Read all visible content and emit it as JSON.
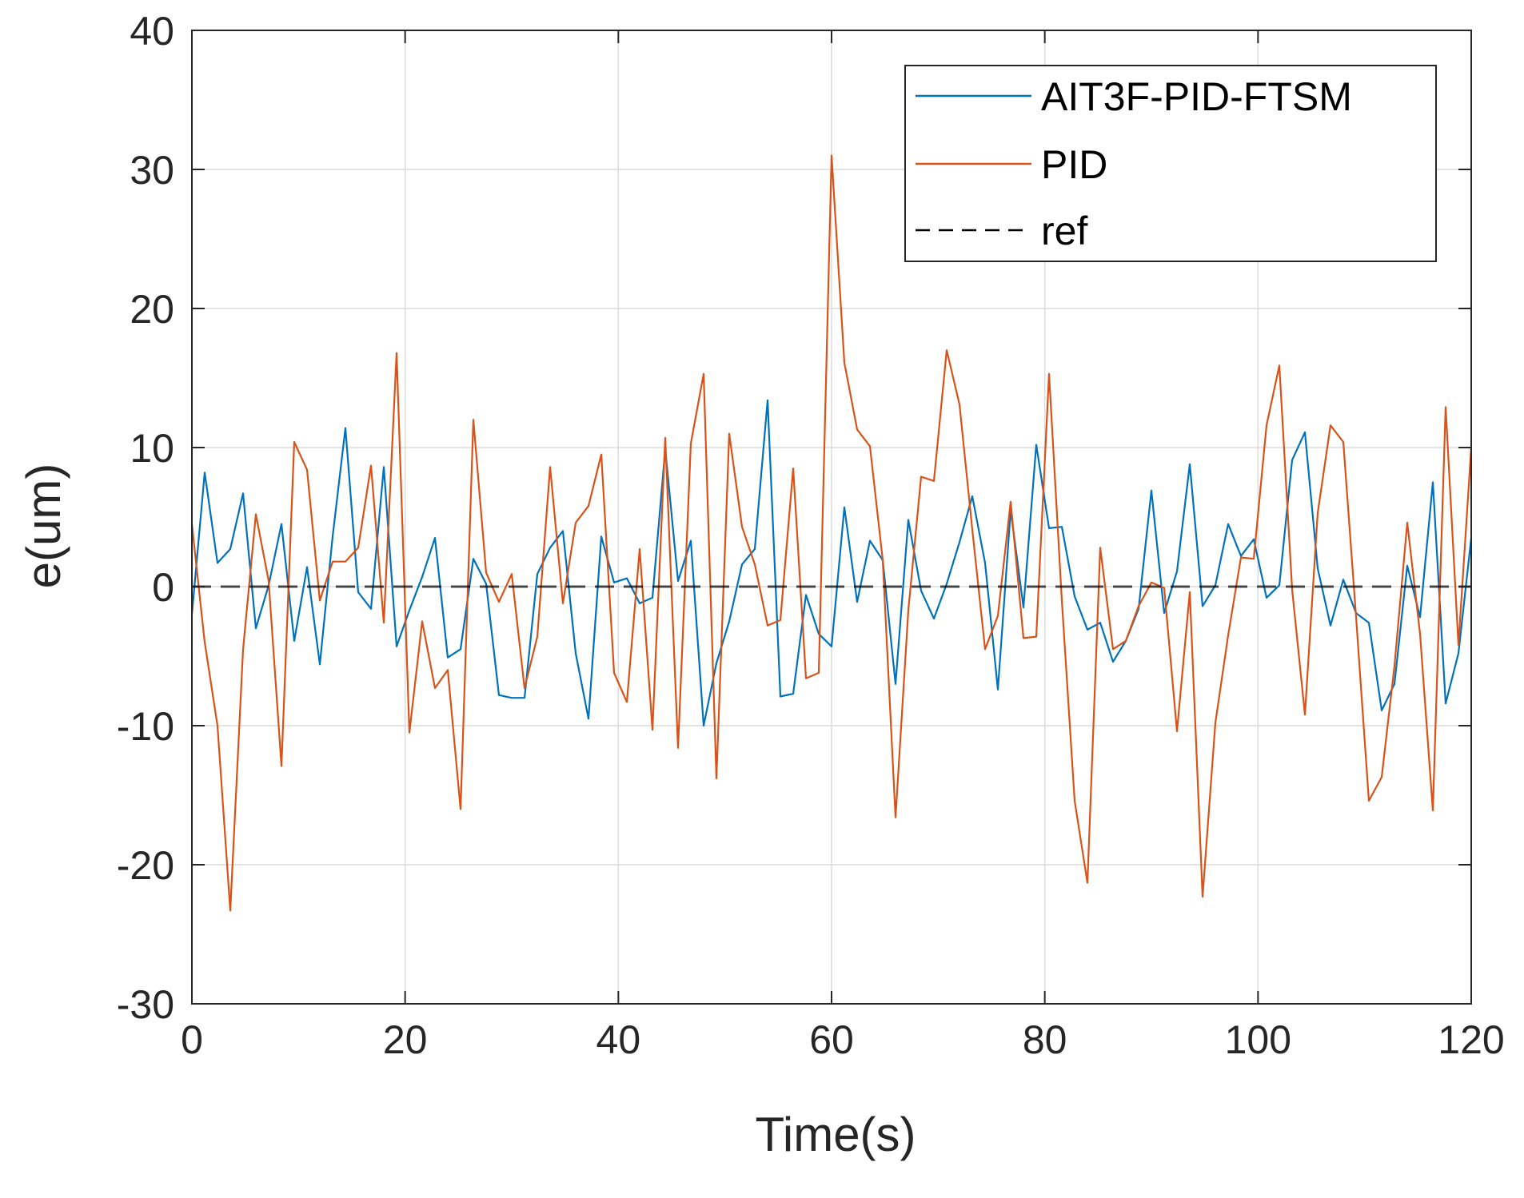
{
  "chart_data": {
    "type": "line",
    "title": "",
    "xlabel": "Time(s)",
    "ylabel": "e(um)",
    "xlim": [
      0,
      120
    ],
    "ylim": [
      -30,
      40
    ],
    "xticks": [
      0,
      20,
      40,
      60,
      80,
      100,
      120
    ],
    "yticks": [
      -30,
      -20,
      -10,
      0,
      10,
      20,
      30,
      40
    ],
    "grid": true,
    "legend_position": "top-right",
    "series": [
      {
        "name": "AIT3F-PID-FTSM",
        "color": "#0072BD",
        "style": "solid",
        "x": [
          0,
          1.2,
          2.4,
          3.6,
          4.8,
          6,
          7.2,
          8.4,
          9.6,
          10.8,
          12,
          13.2,
          14.4,
          15.6,
          16.8,
          18,
          19.2,
          20.4,
          21.6,
          22.8,
          24,
          25.2,
          26.4,
          27.6,
          28.8,
          30,
          31.2,
          32.4,
          33.6,
          34.8,
          36,
          37.2,
          38.4,
          39.6,
          40.8,
          42,
          43.2,
          44.4,
          45.6,
          46.8,
          48,
          49.2,
          50.4,
          51.6,
          52.8,
          54,
          55.2,
          56.4,
          57.6,
          58.8,
          60,
          61.2,
          62.4,
          63.6,
          64.8,
          66,
          67.2,
          68.4,
          69.6,
          70.8,
          72,
          73.2,
          74.4,
          75.6,
          76.8,
          78,
          79.2,
          80.4,
          81.6,
          82.8,
          84,
          85.2,
          86.4,
          87.6,
          88.8,
          90,
          91.2,
          92.4,
          93.6,
          94.8,
          96,
          97.2,
          98.4,
          99.6,
          100.8,
          102,
          103.2,
          104.4,
          105.6,
          106.8,
          108,
          109.2,
          110.4,
          111.6,
          112.8,
          114,
          115.2,
          116.4,
          117.6,
          118.8,
          120
        ],
        "y": [
          -2,
          8.2,
          1.7,
          2.7,
          6.7,
          -3,
          0.1,
          4.5,
          -3.9,
          1.4,
          -5.6,
          3.6,
          11.4,
          -0.4,
          -1.6,
          8.6,
          -4.3,
          -1.7,
          0.7,
          3.5,
          -5.1,
          -4.5,
          2,
          0.2,
          -7.8,
          -8,
          -8,
          0.9,
          2.8,
          4,
          -4.8,
          -9.5,
          3.6,
          0.3,
          0.6,
          -1.2,
          -0.8,
          9.9,
          0.4,
          3.3,
          -10,
          -5.5,
          -2.5,
          1.6,
          2.7,
          13.4,
          -7.9,
          -7.7,
          -0.6,
          -3.4,
          -4.3,
          5.7,
          -1.1,
          3.3,
          1.9,
          -7,
          4.8,
          -0.3,
          -2.3,
          0.2,
          3.2,
          6.5,
          1.7,
          -7.4,
          5.5,
          -1.5,
          10.2,
          4.2,
          4.3,
          -0.7,
          -3.1,
          -2.6,
          -5.4,
          -3.9,
          -1.6,
          6.9,
          -1.9,
          1.1,
          8.8,
          -1.4,
          0.1,
          4.5,
          2.2,
          3.4,
          -0.8,
          0.1,
          9.1,
          11.1,
          1.3,
          -2.8,
          0.5,
          -1.9,
          -2.6,
          -8.9,
          -7,
          1.5,
          -2.2,
          7.5,
          -8.4,
          -4.8,
          3.5
        ]
      },
      {
        "name": "PID",
        "color": "#D95319",
        "style": "solid",
        "x": [
          0,
          1.2,
          2.4,
          3.6,
          4.8,
          6,
          7.2,
          8.4,
          9.6,
          10.8,
          12,
          13.2,
          14.4,
          15.6,
          16.8,
          18,
          19.2,
          20.4,
          21.6,
          22.8,
          24,
          25.2,
          26.4,
          27.6,
          28.8,
          30,
          31.2,
          32.4,
          33.6,
          34.8,
          36,
          37.2,
          38.4,
          39.6,
          40.8,
          42,
          43.2,
          44.4,
          45.6,
          46.8,
          48,
          49.2,
          50.4,
          51.6,
          52.8,
          54,
          55.2,
          56.4,
          57.6,
          58.8,
          60,
          61.2,
          62.4,
          63.6,
          64.8,
          66,
          67.2,
          68.4,
          69.6,
          70.8,
          72,
          73.2,
          74.4,
          75.6,
          76.8,
          78,
          79.2,
          80.4,
          81.6,
          82.8,
          84,
          85.2,
          86.4,
          87.6,
          88.8,
          90,
          91.2,
          92.4,
          93.6,
          94.8,
          96,
          97.2,
          98.4,
          99.6,
          100.8,
          102,
          103.2,
          104.4,
          105.6,
          106.8,
          108,
          109.2,
          110.4,
          111.6,
          112.8,
          114,
          115.2,
          116.4,
          117.6,
          118.8,
          120
        ],
        "y": [
          4.5,
          -4,
          -10,
          -23.3,
          -4.5,
          5.2,
          0.4,
          -12.9,
          10.4,
          8.4,
          -1,
          1.8,
          1.8,
          2.8,
          8.7,
          -2.6,
          16.8,
          -10.5,
          -2.5,
          -7.3,
          -6,
          -16,
          12,
          1,
          -1.1,
          0.9,
          -7.3,
          -3.6,
          8.6,
          -1.2,
          4.6,
          5.8,
          9.5,
          -6.2,
          -8.3,
          2.7,
          -10.3,
          10.7,
          -11.6,
          10.3,
          15.3,
          -13.8,
          11,
          4.3,
          1.6,
          -2.8,
          -2.4,
          8.5,
          -6.6,
          -6.2,
          31,
          16.1,
          11.3,
          10.1,
          1.9,
          -16.6,
          -1.7,
          7.9,
          7.6,
          17,
          13.1,
          4.1,
          -4.5,
          -2.1,
          6.1,
          -3.7,
          -3.6,
          15.3,
          -1,
          -15.4,
          -21.3,
          2.8,
          -4.5,
          -3.9,
          -1.4,
          0.3,
          -0.1,
          -10.4,
          -0.4,
          -22.3,
          -9.8,
          -3.5,
          2.1,
          2,
          11.6,
          15.9,
          -0.2,
          -9.2,
          5.3,
          11.6,
          10.4,
          -2.2,
          -15.4,
          -13.7,
          -5.7,
          4.6,
          -3.4,
          -16.1,
          12.9,
          -4.2,
          10
        ]
      },
      {
        "name": "ref",
        "color": "#000000",
        "style": "dashed",
        "x": [
          0,
          120
        ],
        "y": [
          0,
          0
        ]
      }
    ]
  }
}
